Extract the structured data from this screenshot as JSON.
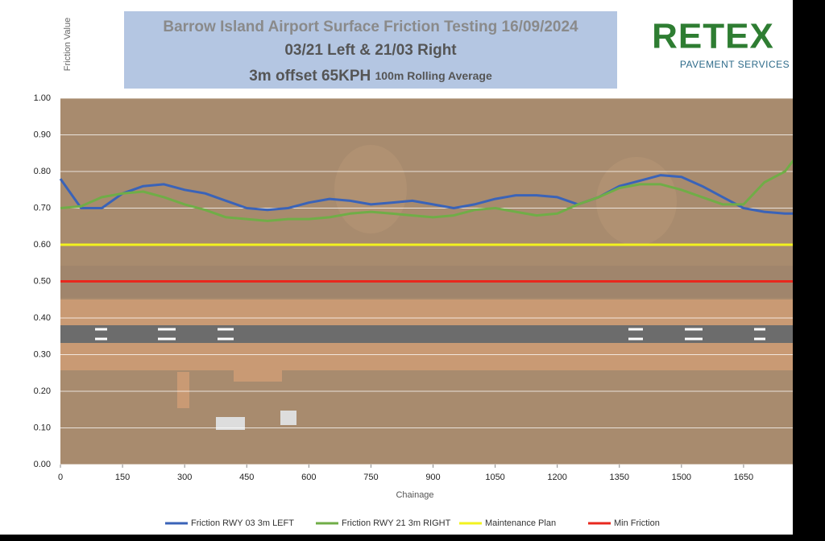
{
  "chart_data": {
    "type": "line",
    "title_lines": [
      "Barrow Island Airport Surface Friction Testing 16/09/2024",
      "03/21 Left & 21/03 Right"
    ],
    "title_line3": {
      "main": "3m offset 65KPH",
      "small": "100m Rolling Average"
    },
    "logo": {
      "brand": "RETEX",
      "tagline": "PAVEMENT SERVICES"
    },
    "y_label": "Friction Value",
    "x_label": "Chainage",
    "xlim": [
      0,
      1800
    ],
    "ylim": [
      0,
      1
    ],
    "xticks": [
      0,
      150,
      300,
      450,
      600,
      750,
      900,
      1050,
      1200,
      1350,
      1500,
      1650
    ],
    "yticks": [
      {
        "value": 0,
        "label": "0.00"
      },
      {
        "value": 0.1,
        "label": "0.10"
      },
      {
        "value": 0.2,
        "label": "0.20"
      },
      {
        "value": 0.3,
        "label": "0.30"
      },
      {
        "value": 0.4,
        "label": "0.40"
      },
      {
        "value": 0.5,
        "label": "0.50"
      },
      {
        "value": 0.6,
        "label": "0.60"
      },
      {
        "value": 0.7,
        "label": "0.70"
      },
      {
        "value": 0.8,
        "label": "0.80"
      },
      {
        "value": 0.9,
        "label": "0.90"
      },
      {
        "value": 1,
        "label": "1.00"
      }
    ],
    "grid": true,
    "x": [
      0,
      50,
      100,
      150,
      200,
      250,
      300,
      350,
      400,
      450,
      500,
      550,
      600,
      650,
      700,
      750,
      800,
      850,
      900,
      950,
      1000,
      1050,
      1100,
      1150,
      1200,
      1250,
      1300,
      1350,
      1400,
      1450,
      1500,
      1550,
      1600,
      1650,
      1700,
      1750,
      1770
    ],
    "series": [
      {
        "name": "Friction RWY 03 3m LEFT",
        "color": "#3a63b8",
        "values": [
          0.78,
          0.7,
          0.7,
          0.74,
          0.76,
          0.765,
          0.75,
          0.74,
          0.72,
          0.7,
          0.695,
          0.7,
          0.715,
          0.725,
          0.72,
          0.71,
          0.715,
          0.72,
          0.71,
          0.7,
          0.71,
          0.725,
          0.735,
          0.735,
          0.73,
          0.71,
          0.73,
          0.76,
          0.775,
          0.79,
          0.785,
          0.76,
          0.73,
          0.7,
          0.69,
          0.685,
          0.685
        ]
      },
      {
        "name": "Friction RWY 21 3m RIGHT",
        "color": "#70ad47",
        "values": [
          0.7,
          0.705,
          0.73,
          0.74,
          0.745,
          0.73,
          0.71,
          0.695,
          0.675,
          0.67,
          0.665,
          0.67,
          0.67,
          0.675,
          0.685,
          0.69,
          0.685,
          0.68,
          0.675,
          0.68,
          0.695,
          0.7,
          0.69,
          0.68,
          0.685,
          0.71,
          0.73,
          0.755,
          0.765,
          0.765,
          0.75,
          0.73,
          0.71,
          0.71,
          0.77,
          0.8,
          0.83
        ]
      }
    ],
    "hlines": [
      {
        "name": "Maintenance Plan",
        "color": "#f2f21e",
        "value": 0.6
      },
      {
        "name": "Min Friction",
        "color": "#e8281e",
        "value": 0.5
      }
    ]
  }
}
